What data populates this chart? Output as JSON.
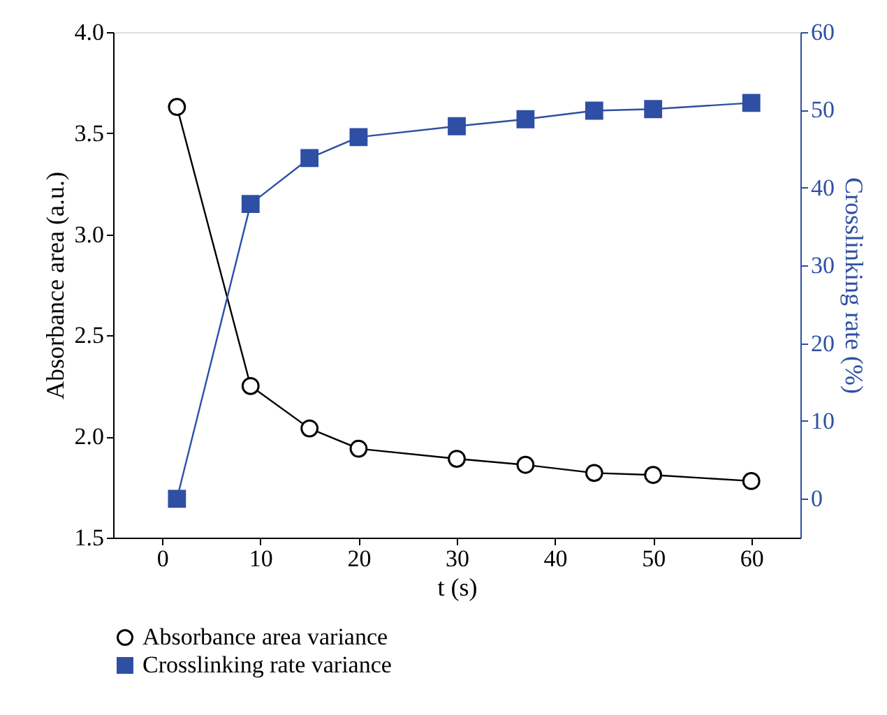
{
  "chart_data": {
    "type": "line",
    "xlabel": "t (s)",
    "ylabel": "Absorbance area (a.u.)",
    "y2label": "Crosslinking rate (%)",
    "xlim": [
      -5,
      65
    ],
    "xticks": [
      0,
      10,
      20,
      30,
      40,
      50,
      60
    ],
    "ylim": [
      1.5,
      4.0
    ],
    "yticks": [
      1.5,
      {
        "value": 2,
        "label": "2.0"
      },
      2.5,
      {
        "value": 3,
        "label": "3.0"
      },
      3.5,
      {
        "value": 4,
        "label": "4.0"
      }
    ],
    "y2lim": [
      -5,
      60
    ],
    "y2ticks": [
      0,
      10,
      20,
      30,
      40,
      50,
      60
    ],
    "x": [
      1.5,
      9,
      15,
      20,
      30,
      37,
      44,
      50,
      60
    ],
    "grid": false,
    "legend": "bottom",
    "line_style": "solid",
    "series": [
      {
        "name": "Absorbance area variance",
        "color": "#000000",
        "marker": "circle",
        "values": [
          3.63,
          2.25,
          2.04,
          1.94,
          1.89,
          1.86,
          1.82,
          1.81,
          1.78
        ]
      },
      {
        "name": "Crosslinking rate variance",
        "color": "#2e4fa3",
        "marker": "square",
        "axis": "y2",
        "values": [
          0,
          37.9,
          43.8,
          46.5,
          47.9,
          48.8,
          49.9,
          50.1,
          50.9
        ]
      }
    ]
  }
}
